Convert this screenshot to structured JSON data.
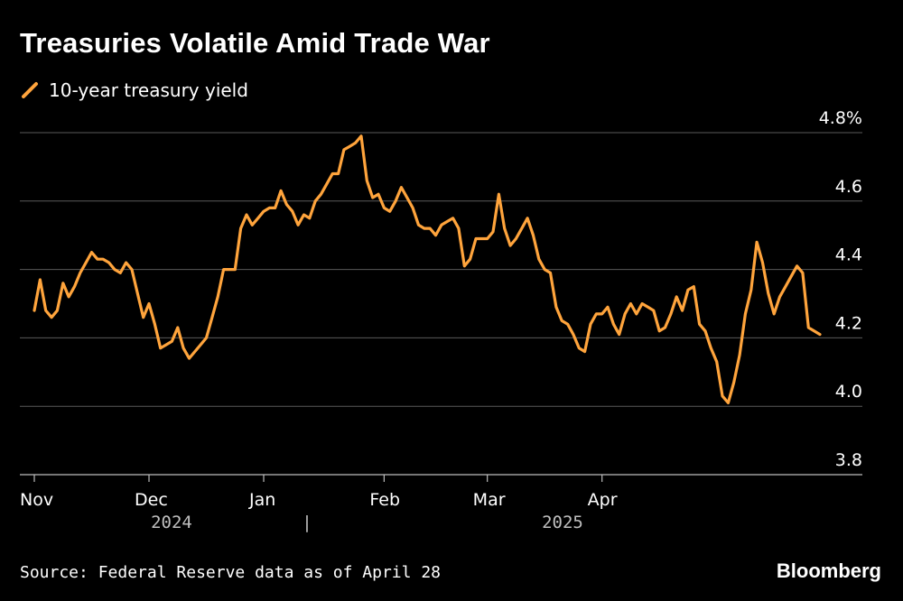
{
  "chart_data": {
    "type": "line",
    "title": "Treasuries Volatile Amid Trade War",
    "legend": "10-year treasury yield",
    "ylabel": "",
    "xlabel": "",
    "ylim": [
      3.8,
      4.8
    ],
    "yticks": [
      "4.8%",
      "4.6",
      "4.4",
      "4.2",
      "4.0",
      "3.8"
    ],
    "ytick_values": [
      4.8,
      4.6,
      4.4,
      4.2,
      4.0,
      3.8
    ],
    "xticks": [
      "Nov",
      "Dec",
      "Jan",
      "Feb",
      "Mar",
      "Apr"
    ],
    "xtick_index": [
      0,
      20,
      40,
      61,
      79,
      99
    ],
    "years": [
      "2024",
      "2025"
    ],
    "year_separator": "|",
    "grid": true,
    "color": "#ffa43c",
    "series": [
      {
        "name": "10-year treasury yield",
        "values": [
          4.28,
          4.37,
          4.28,
          4.26,
          4.28,
          4.36,
          4.32,
          4.35,
          4.39,
          4.42,
          4.45,
          4.43,
          4.43,
          4.42,
          4.4,
          4.39,
          4.42,
          4.4,
          4.33,
          4.26,
          4.3,
          4.24,
          4.17,
          4.18,
          4.19,
          4.23,
          4.17,
          4.14,
          4.16,
          4.18,
          4.2,
          4.26,
          4.32,
          4.4,
          4.4,
          4.4,
          4.52,
          4.56,
          4.53,
          4.55,
          4.57,
          4.58,
          4.58,
          4.63,
          4.59,
          4.57,
          4.53,
          4.56,
          4.55,
          4.6,
          4.62,
          4.65,
          4.68,
          4.68,
          4.75,
          4.76,
          4.77,
          4.79,
          4.66,
          4.61,
          4.62,
          4.58,
          4.57,
          4.6,
          4.64,
          4.61,
          4.58,
          4.53,
          4.52,
          4.52,
          4.5,
          4.53,
          4.54,
          4.55,
          4.52,
          4.41,
          4.43,
          4.49,
          4.49,
          4.49,
          4.51,
          4.62,
          4.52,
          4.47,
          4.49,
          4.52,
          4.55,
          4.5,
          4.43,
          4.4,
          4.39,
          4.29,
          4.25,
          4.24,
          4.21,
          4.17,
          4.16,
          4.24,
          4.27,
          4.27,
          4.29,
          4.24,
          4.21,
          4.27,
          4.3,
          4.27,
          4.3,
          4.29,
          4.28,
          4.22,
          4.23,
          4.27,
          4.32,
          4.28,
          4.34,
          4.35,
          4.24,
          4.22,
          4.17,
          4.13,
          4.03,
          4.01,
          4.07,
          4.15,
          4.27,
          4.34,
          4.48,
          4.42,
          4.33,
          4.27,
          4.32,
          4.35,
          4.38,
          4.41,
          4.39,
          4.23,
          4.22,
          4.21
        ]
      }
    ]
  },
  "footer": {
    "source": "Source: Federal Reserve data as of April 28",
    "brand": "Bloomberg"
  }
}
